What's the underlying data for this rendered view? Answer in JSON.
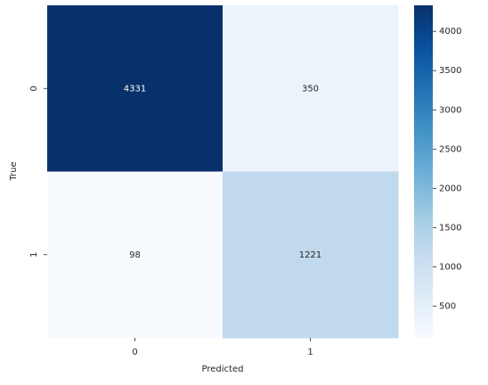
{
  "chart_data": {
    "type": "heatmap",
    "categories": [
      "0",
      "1"
    ],
    "y_categories": [
      "0",
      "1"
    ],
    "values": [
      [
        4331,
        350
      ],
      [
        98,
        1221
      ]
    ],
    "xlabel": "Predicted",
    "ylabel": "True",
    "colormap": "Blues",
    "clim": [
      98,
      4331
    ],
    "cticks": [
      500,
      1000,
      1500,
      2000,
      2500,
      3000,
      3500,
      4000
    ]
  }
}
